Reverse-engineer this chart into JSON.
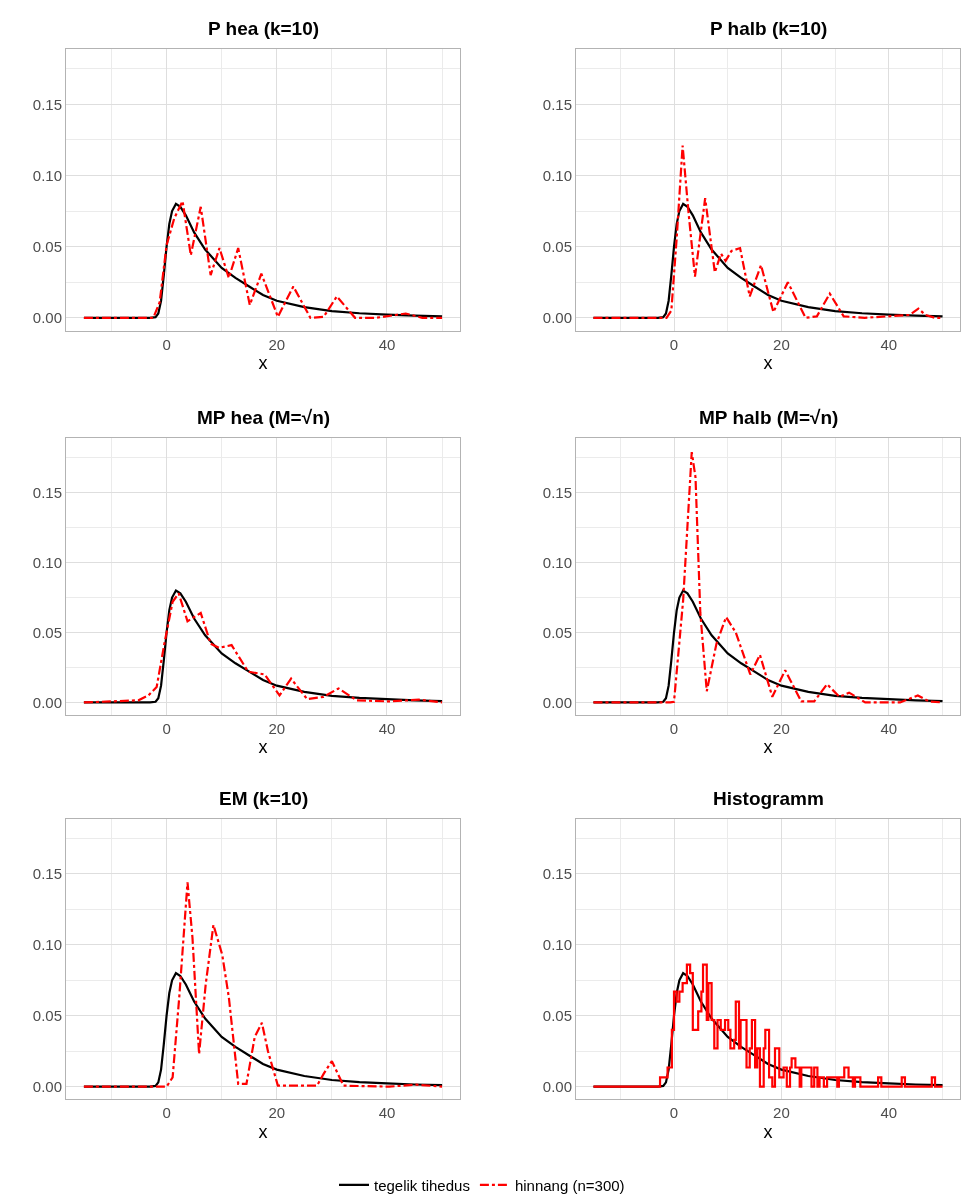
{
  "chart_data": [
    {
      "type": "line",
      "title": "P hea (k=10)",
      "xlabel": "x",
      "xlim": [
        -18.25,
        53.25
      ],
      "ylim": [
        -0.009,
        0.189
      ],
      "xticks": [
        0,
        20,
        40
      ],
      "yticks": [
        {
          "value": 0,
          "label": "0.00"
        },
        {
          "value": 0.05,
          "label": "0.05"
        },
        {
          "value": 0.1,
          "label": "0.10"
        },
        {
          "value": 0.15,
          "label": "0.15"
        }
      ],
      "grid": true,
      "legend": "bottom",
      "series": [
        {
          "name": "tegelik tihedus",
          "color": "#000000",
          "line_style": "solid",
          "x": [
            -15,
            -3,
            -2,
            -1.5,
            -1,
            -0.5,
            0,
            0.5,
            1,
            1.7,
            2.5,
            3.5,
            5,
            7,
            10,
            12.5,
            15,
            17.5,
            20,
            25,
            30,
            35,
            40,
            45,
            50
          ],
          "values": [
            0,
            0,
            0.0005,
            0.003,
            0.012,
            0.03,
            0.05,
            0.066,
            0.075,
            0.08,
            0.078,
            0.072,
            0.06,
            0.048,
            0.035,
            0.028,
            0.022,
            0.016,
            0.012,
            0.0075,
            0.0047,
            0.0032,
            0.0023,
            0.0015,
            0.001
          ]
        },
        {
          "name": "hinnang (n=300)",
          "color": "#ff0000",
          "line_style": "dashdot",
          "x": [
            -15,
            -3,
            -2.4,
            -1.25,
            0,
            1.4,
            2.9,
            4.4,
            6.2,
            8,
            9.6,
            11.3,
            13,
            15.1,
            17.2,
            20.2,
            23,
            26.1,
            28.5,
            30.9,
            34.2,
            38,
            41.6,
            43.4,
            46.4,
            50
          ],
          "values": [
            0,
            0,
            0,
            0.011,
            0.051,
            0.07,
            0.082,
            0.044,
            0.078,
            0.03,
            0.049,
            0.028,
            0.049,
            0.009,
            0.031,
            0.0007,
            0.022,
            0,
            0.0007,
            0.015,
            0,
            0,
            0.002,
            0.003,
            0,
            0
          ]
        }
      ]
    },
    {
      "type": "line",
      "title": "P halb (k=10)",
      "xlabel": "x",
      "xlim": [
        -18.25,
        53.25
      ],
      "ylim": [
        -0.009,
        0.189
      ],
      "xticks": [
        0,
        20,
        40
      ],
      "yticks": [
        {
          "value": 0,
          "label": "0.00"
        },
        {
          "value": 0.05,
          "label": "0.05"
        },
        {
          "value": 0.1,
          "label": "0.10"
        },
        {
          "value": 0.15,
          "label": "0.15"
        }
      ],
      "grid": true,
      "legend": "bottom",
      "series": [
        {
          "name": "tegelik tihedus",
          "color": "#000000",
          "line_style": "solid",
          "x": [
            -15,
            -3,
            -2,
            -1.5,
            -1,
            -0.5,
            0,
            0.5,
            1,
            1.7,
            2.5,
            3.5,
            5,
            7,
            10,
            12.5,
            15,
            17.5,
            20,
            25,
            30,
            35,
            40,
            45,
            50
          ],
          "values": [
            0,
            0,
            0.0005,
            0.003,
            0.012,
            0.03,
            0.05,
            0.066,
            0.075,
            0.08,
            0.078,
            0.072,
            0.06,
            0.048,
            0.035,
            0.028,
            0.022,
            0.016,
            0.012,
            0.0075,
            0.0047,
            0.0032,
            0.0023,
            0.0015,
            0.001
          ]
        },
        {
          "name": "hinnang (n=300)",
          "color": "#ff0000",
          "line_style": "dashdot",
          "x": [
            -15,
            -1.4,
            -0.5,
            0.5,
            1.6,
            2.7,
            3.9,
            5.8,
            7.6,
            8.75,
            9.6,
            10.7,
            12.3,
            14.1,
            16.2,
            18.5,
            21.2,
            24.5,
            26.6,
            29,
            31.6,
            35.5,
            43.9,
            45.5,
            46.8,
            48.6,
            50
          ],
          "values": [
            0,
            0,
            0.005,
            0.056,
            0.121,
            0.074,
            0.029,
            0.084,
            0.032,
            0.045,
            0.04,
            0.047,
            0.049,
            0.015,
            0.037,
            0.004,
            0.025,
            0,
            0.001,
            0.017,
            0.001,
            0,
            0.002,
            0.0065,
            0.002,
            0,
            0
          ]
        }
      ]
    },
    {
      "type": "line",
      "title": "MP hea (M=√n)",
      "xlabel": "x",
      "xlim": [
        -18.25,
        53.25
      ],
      "ylim": [
        -0.009,
        0.189
      ],
      "xticks": [
        0,
        20,
        40
      ],
      "yticks": [
        {
          "value": 0,
          "label": "0.00"
        },
        {
          "value": 0.05,
          "label": "0.05"
        },
        {
          "value": 0.1,
          "label": "0.10"
        },
        {
          "value": 0.15,
          "label": "0.15"
        }
      ],
      "grid": true,
      "legend": "bottom",
      "series": [
        {
          "name": "tegelik tihedus",
          "color": "#000000",
          "line_style": "solid",
          "x": [
            -15,
            -3,
            -2,
            -1.5,
            -1,
            -0.5,
            0,
            0.5,
            1,
            1.7,
            2.5,
            3.5,
            5,
            7,
            10,
            12.5,
            15,
            17.5,
            20,
            25,
            30,
            35,
            40,
            45,
            50
          ],
          "values": [
            0,
            0,
            0.0005,
            0.003,
            0.012,
            0.03,
            0.05,
            0.066,
            0.075,
            0.08,
            0.078,
            0.072,
            0.06,
            0.048,
            0.035,
            0.028,
            0.022,
            0.016,
            0.012,
            0.0075,
            0.0047,
            0.0032,
            0.0023,
            0.0015,
            0.001
          ]
        },
        {
          "name": "hinnang (n=300)",
          "color": "#ff0000",
          "line_style": "dashdot",
          "x": [
            -15,
            -10.2,
            -5.1,
            -3.3,
            -1.8,
            -0.4,
            1.1,
            2.2,
            3.8,
            6.2,
            8,
            9.5,
            11.8,
            14.8,
            17.8,
            20.5,
            22.6,
            25.5,
            28.5,
            31.2,
            34.5,
            40.4,
            45.8,
            50
          ],
          "values": [
            0,
            0.0007,
            0.0015,
            0.005,
            0.011,
            0.042,
            0.072,
            0.078,
            0.058,
            0.064,
            0.042,
            0.039,
            0.041,
            0.022,
            0.02,
            0.005,
            0.017,
            0.0024,
            0.004,
            0.01,
            0.0015,
            0.0007,
            0.002,
            0
          ]
        }
      ]
    },
    {
      "type": "line",
      "title": "MP halb (M=√n)",
      "xlabel": "x",
      "xlim": [
        -18.25,
        53.25
      ],
      "ylim": [
        -0.009,
        0.189
      ],
      "xticks": [
        0,
        20,
        40
      ],
      "yticks": [
        {
          "value": 0,
          "label": "0.00"
        },
        {
          "value": 0.05,
          "label": "0.05"
        },
        {
          "value": 0.1,
          "label": "0.10"
        },
        {
          "value": 0.15,
          "label": "0.15"
        }
      ],
      "grid": true,
      "legend": "bottom",
      "series": [
        {
          "name": "tegelik tihedus",
          "color": "#000000",
          "line_style": "solid",
          "x": [
            -15,
            -3,
            -2,
            -1.5,
            -1,
            -0.5,
            0,
            0.5,
            1,
            1.7,
            2.5,
            3.5,
            5,
            7,
            10,
            12.5,
            15,
            17.5,
            20,
            25,
            30,
            35,
            40,
            45,
            50
          ],
          "values": [
            0,
            0,
            0.0005,
            0.003,
            0.012,
            0.03,
            0.05,
            0.066,
            0.075,
            0.08,
            0.078,
            0.072,
            0.06,
            0.048,
            0.035,
            0.028,
            0.022,
            0.016,
            0.012,
            0.0075,
            0.0047,
            0.0032,
            0.0023,
            0.0015,
            0.001
          ]
        },
        {
          "name": "hinnang (n=300)",
          "color": "#ff0000",
          "line_style": "dashdot",
          "x": [
            -15,
            -0.7,
            0,
            1.7,
            3.3,
            4,
            4.9,
            6.1,
            7.9,
            9.7,
            11.5,
            14.2,
            16,
            18.3,
            20.7,
            23.7,
            26.1,
            28.5,
            30.8,
            32.6,
            35.6,
            42.1,
            45.4,
            47.5,
            50
          ],
          "values": [
            0,
            0,
            0.0005,
            0.073,
            0.179,
            0.161,
            0.064,
            0.008,
            0.042,
            0.061,
            0.05,
            0.02,
            0.034,
            0.004,
            0.023,
            0.0007,
            0.0007,
            0.013,
            0.004,
            0.007,
            0,
            0,
            0.005,
            0.0007,
            0
          ]
        }
      ]
    },
    {
      "type": "line",
      "title": "EM (k=10)",
      "xlabel": "x",
      "xlim": [
        -18.25,
        53.25
      ],
      "ylim": [
        -0.009,
        0.189
      ],
      "xticks": [
        0,
        20,
        40
      ],
      "yticks": [
        {
          "value": 0,
          "label": "0.00"
        },
        {
          "value": 0.05,
          "label": "0.05"
        },
        {
          "value": 0.1,
          "label": "0.10"
        },
        {
          "value": 0.15,
          "label": "0.15"
        }
      ],
      "grid": true,
      "legend": "bottom",
      "series": [
        {
          "name": "tegelik tihedus",
          "color": "#000000",
          "line_style": "solid",
          "x": [
            -15,
            -3,
            -2,
            -1.5,
            -1,
            -0.5,
            0,
            0.5,
            1,
            1.7,
            2.5,
            3.5,
            5,
            7,
            10,
            12.5,
            15,
            17.5,
            20,
            25,
            30,
            35,
            40,
            45,
            50
          ],
          "values": [
            0,
            0,
            0.0005,
            0.003,
            0.012,
            0.03,
            0.05,
            0.066,
            0.075,
            0.08,
            0.078,
            0.072,
            0.06,
            0.048,
            0.035,
            0.028,
            0.022,
            0.016,
            0.012,
            0.0075,
            0.0047,
            0.0032,
            0.0023,
            0.0015,
            0.001
          ]
        },
        {
          "name": "hinnang (n=300)",
          "color": "#ff0000",
          "line_style": "dashdot",
          "x": [
            -15,
            0,
            1.1,
            2.3,
            3.8,
            4.7,
            5.9,
            7.1,
            8.5,
            10.1,
            11.3,
            13,
            14.5,
            16,
            17.3,
            18.4,
            20.2,
            27.3,
            28.5,
            30,
            32.1,
            40.4,
            45.2,
            50
          ],
          "values": [
            0,
            0,
            0.0065,
            0.063,
            0.144,
            0.105,
            0.023,
            0.072,
            0.114,
            0.093,
            0.063,
            0.002,
            0.002,
            0.035,
            0.045,
            0.025,
            0.0007,
            0.0007,
            0.009,
            0.018,
            0.0007,
            0,
            0.0014,
            0
          ]
        }
      ]
    },
    {
      "type": "line",
      "title": "Histogramm",
      "xlabel": "x",
      "xlim": [
        -18.25,
        53.25
      ],
      "ylim": [
        -0.009,
        0.189
      ],
      "xticks": [
        0,
        20,
        40
      ],
      "yticks": [
        {
          "value": 0,
          "label": "0.00"
        },
        {
          "value": 0.05,
          "label": "0.05"
        },
        {
          "value": 0.1,
          "label": "0.10"
        },
        {
          "value": 0.15,
          "label": "0.15"
        }
      ],
      "grid": true,
      "legend": "bottom",
      "series": [
        {
          "name": "tegelik tihedus",
          "color": "#000000",
          "line_style": "solid",
          "x": [
            -15,
            -3,
            -2,
            -1.5,
            -1,
            -0.5,
            0,
            0.5,
            1,
            1.7,
            2.5,
            3.5,
            5,
            7,
            10,
            12.5,
            15,
            17.5,
            20,
            25,
            30,
            35,
            40,
            45,
            50
          ],
          "values": [
            0,
            0,
            0.0005,
            0.003,
            0.012,
            0.03,
            0.05,
            0.066,
            0.075,
            0.08,
            0.078,
            0.072,
            0.06,
            0.048,
            0.035,
            0.028,
            0.022,
            0.016,
            0.012,
            0.0075,
            0.0047,
            0.0032,
            0.0023,
            0.0015,
            0.001
          ]
        },
        {
          "name": "hinnang (n=300)",
          "type": "step",
          "color": "#ff0000",
          "line_style": "solid",
          "x": [
            -15,
            -2.6,
            -1.2,
            -0.4,
            0,
            0.5,
            1,
            1.6,
            2.4,
            3,
            3.5,
            4.5,
            5.1,
            5.4,
            6.1,
            6.4,
            7,
            7.5,
            8.1,
            8.7,
            9.5,
            10.1,
            10.5,
            11.2,
            11.5,
            12.1,
            12.4,
            13.5,
            14.1,
            14.5,
            15.1,
            15.5,
            16,
            16.7,
            17,
            17.7,
            18.3,
            18.8,
            19.6,
            20.4,
            21,
            21.6,
            21.9,
            22.6,
            23.4,
            23.7,
            25.6,
            26.1,
            26.7,
            27.1,
            27.9,
            28.5,
            30.4,
            30.7,
            31.7,
            32.5,
            33.3,
            33.7,
            34.7,
            38,
            38.6,
            42.4,
            43,
            48,
            48.6,
            50
          ],
          "values": [
            0,
            0.0065,
            0.0135,
            0.04,
            0.067,
            0.06,
            0.067,
            0.073,
            0.086,
            0.08,
            0.04,
            0.053,
            0.067,
            0.086,
            0.047,
            0.073,
            0.047,
            0.027,
            0.047,
            0.04,
            0.047,
            0.04,
            0.027,
            0.033,
            0.06,
            0.027,
            0.047,
            0.0135,
            0.027,
            0.047,
            0.0135,
            0.027,
            0,
            0.027,
            0.04,
            0.0065,
            0,
            0.027,
            0.0065,
            0.0135,
            0,
            0.0135,
            0.02,
            0.0135,
            0,
            0.0135,
            0,
            0.0135,
            0,
            0.0065,
            0,
            0.0065,
            0,
            0.0065,
            0.0135,
            0.0065,
            0,
            0.0065,
            0,
            0.0065,
            0,
            0.0065,
            0,
            0.0065,
            0,
            0
          ]
        }
      ]
    }
  ]
}
